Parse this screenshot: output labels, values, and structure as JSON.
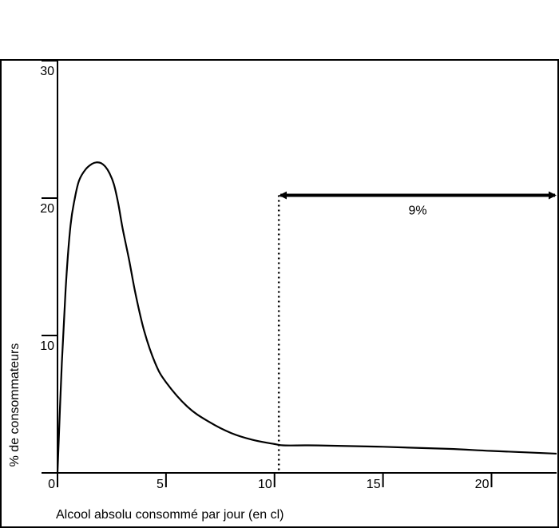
{
  "chart_data": {
    "type": "line",
    "title": "",
    "xlabel": "Alcool absolu consommé par jour (en cl)",
    "ylabel": "% de consommateurs",
    "xlim": [
      0,
      23
    ],
    "ylim": [
      0,
      30
    ],
    "grid": false,
    "x_ticks": [
      {
        "value": 0,
        "label": "0"
      },
      {
        "value": 5,
        "label": "5"
      },
      {
        "value": 10,
        "label": "10"
      },
      {
        "value": 15,
        "label": "15"
      },
      {
        "value": 20,
        "label": "20"
      }
    ],
    "y_ticks": [
      {
        "value": 10,
        "label": "10"
      },
      {
        "value": 20,
        "label": "20"
      },
      {
        "value": 30,
        "label": "30"
      }
    ],
    "series": [
      {
        "x": [
          0,
          0.2,
          0.4,
          0.6,
          0.8,
          1.0,
          1.3,
          1.6,
          1.8,
          2.0,
          2.2,
          2.4,
          2.6,
          2.8,
          3.0,
          3.3,
          3.6,
          4.0,
          4.5,
          5.0,
          6.0,
          7.0,
          8.0,
          9.0,
          10.0,
          10.5,
          12,
          15,
          18,
          20,
          23
        ],
        "y": [
          0,
          8,
          14,
          18,
          20,
          21.3,
          22.1,
          22.5,
          22.6,
          22.55,
          22.3,
          21.8,
          21.0,
          19.6,
          17.8,
          15.5,
          13.0,
          10.3,
          8.0,
          6.6,
          4.8,
          3.7,
          2.9,
          2.4,
          2.1,
          2.0,
          2.0,
          1.9,
          1.75,
          1.6,
          1.4
        ]
      }
    ],
    "threshold": {
      "x": 10.2,
      "style": "dotted"
    },
    "annotations": [
      {
        "text": "9%",
        "x_start": 10.2,
        "x_end": 23,
        "y": 20.2
      }
    ],
    "colors": {
      "line": "#000000",
      "background": "#ffffff"
    }
  }
}
